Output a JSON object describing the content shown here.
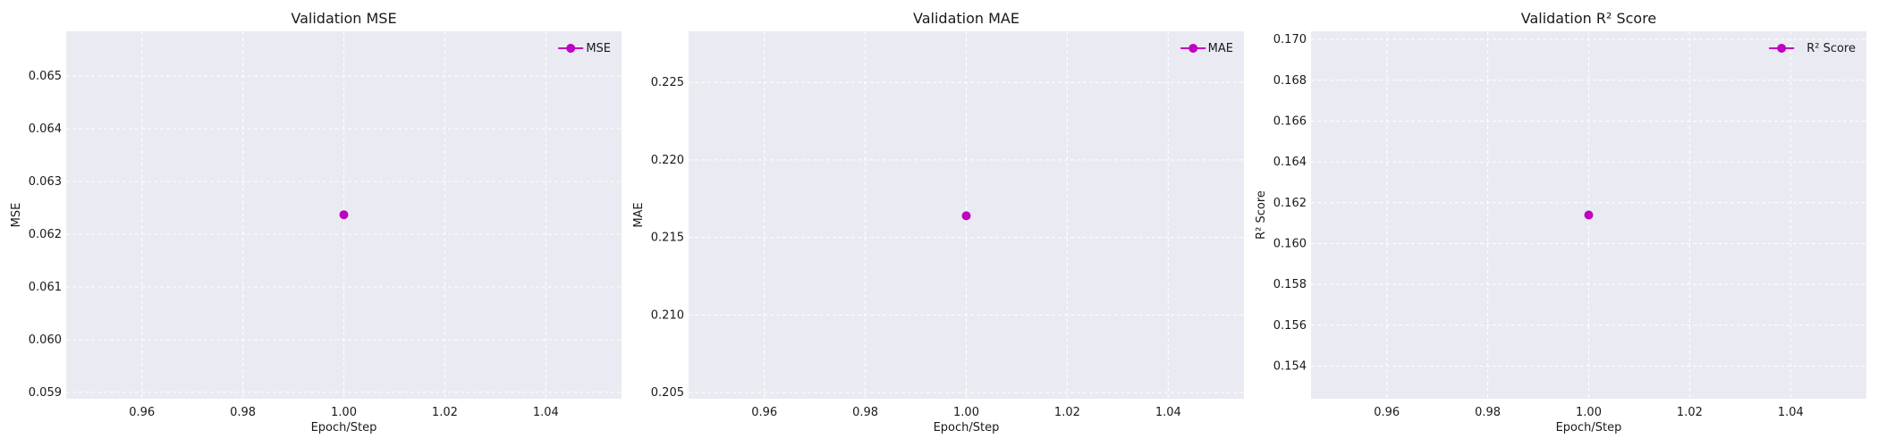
{
  "chart_data": [
    {
      "type": "line",
      "title": "Validation MSE",
      "xlabel": "Epoch/Step",
      "ylabel": "MSE",
      "xlim": [
        0.945,
        1.055
      ],
      "ylim": [
        0.05888,
        0.06585
      ],
      "xticks": [
        "0.96",
        "0.98",
        "1.00",
        "1.02",
        "1.04"
      ],
      "xtick_values": [
        0.96,
        0.98,
        1.0,
        1.02,
        1.04
      ],
      "yticks": [
        "0.059",
        "0.060",
        "0.061",
        "0.062",
        "0.063",
        "0.064",
        "0.065"
      ],
      "ytick_values": [
        0.059,
        0.06,
        0.061,
        0.062,
        0.063,
        0.064,
        0.065
      ],
      "grid": true,
      "legend_position": "top-right",
      "series": [
        {
          "name": "MSE",
          "color": "#c000c0",
          "marker": "circle",
          "x": [
            1.0
          ],
          "y": [
            0.06237
          ]
        }
      ]
    },
    {
      "type": "line",
      "title": "Validation MAE",
      "xlabel": "Epoch/Step",
      "ylabel": "MAE",
      "xlim": [
        0.945,
        1.055
      ],
      "ylim": [
        0.2046,
        0.2283
      ],
      "xticks": [
        "0.96",
        "0.98",
        "1.00",
        "1.02",
        "1.04"
      ],
      "xtick_values": [
        0.96,
        0.98,
        1.0,
        1.02,
        1.04
      ],
      "yticks": [
        "0.205",
        "0.210",
        "0.215",
        "0.220",
        "0.225"
      ],
      "ytick_values": [
        0.205,
        0.21,
        0.215,
        0.22,
        0.225
      ],
      "grid": true,
      "legend_position": "top-right",
      "series": [
        {
          "name": "MAE",
          "color": "#c000c0",
          "marker": "circle",
          "x": [
            1.0
          ],
          "y": [
            0.2164
          ]
        }
      ]
    },
    {
      "type": "line",
      "title": "Validation R² Score",
      "xlabel": "Epoch/Step",
      "ylabel": "R² Score",
      "xlim": [
        0.945,
        1.055
      ],
      "ylim": [
        0.1524,
        0.1704
      ],
      "xticks": [
        "0.96",
        "0.98",
        "1.00",
        "1.02",
        "1.04"
      ],
      "xtick_values": [
        0.96,
        0.98,
        1.0,
        1.02,
        1.04
      ],
      "yticks": [
        "0.154",
        "0.156",
        "0.158",
        "0.160",
        "0.162",
        "0.164",
        "0.166",
        "0.168",
        "0.170"
      ],
      "ytick_values": [
        0.154,
        0.156,
        0.158,
        0.16,
        0.162,
        0.164,
        0.166,
        0.168,
        0.17
      ],
      "grid": true,
      "legend_position": "top-right",
      "series": [
        {
          "name": "R² Score",
          "color": "#c000c0",
          "marker": "circle",
          "x": [
            1.0
          ],
          "y": [
            0.1614
          ]
        }
      ]
    }
  ],
  "style": {
    "plot_background": "#eaeaf2",
    "grid_color": "#ffffff",
    "text_color": "#1a1a1a"
  }
}
